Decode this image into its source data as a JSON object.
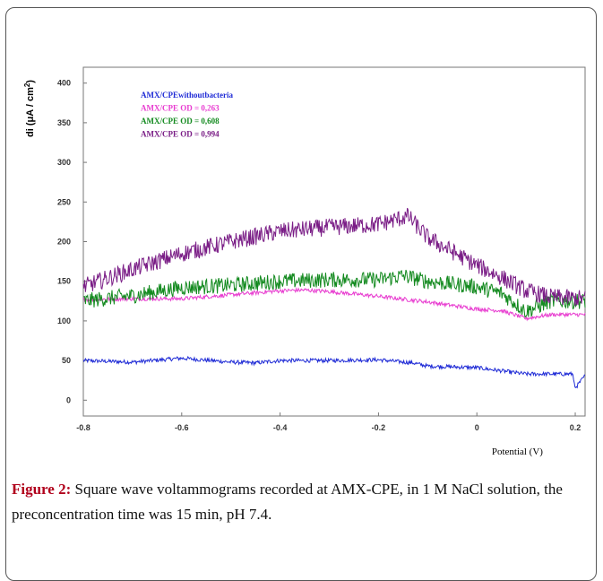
{
  "chart_data": {
    "type": "line",
    "title": "",
    "xlabel": "Potential (V)",
    "ylabel_parts": [
      "di (",
      "μ",
      "A / cm",
      "2",
      ")"
    ],
    "xlim": [
      -0.8,
      0.22
    ],
    "ylim": [
      -20,
      420
    ],
    "xticks": [
      -0.8,
      -0.6,
      -0.4,
      -0.2,
      0,
      0.2
    ],
    "xtick_labels": [
      "-0.8",
      "-0.6",
      "-0.4",
      "-0.2",
      "0",
      "0.2"
    ],
    "yticks": [
      0,
      50,
      100,
      150,
      200,
      250,
      300,
      350,
      400
    ],
    "ytick_labels": [
      "0",
      "50",
      "100",
      "150",
      "200",
      "250",
      "300",
      "350",
      "400"
    ],
    "legend_position": "top-left",
    "series": [
      {
        "name": "AMX/CPE without bacteria",
        "legend_label": "AMX/CPEwithoutbacteria",
        "color": "#1f2bd6",
        "noise": 2.5,
        "x": [
          -0.8,
          -0.7,
          -0.6,
          -0.5,
          -0.45,
          -0.4,
          -0.3,
          -0.2,
          -0.13,
          -0.1,
          0,
          0.1,
          0.15,
          0.195,
          0.2,
          0.22
        ],
        "y": [
          50,
          48,
          53,
          48,
          47,
          50,
          50,
          51,
          47,
          43,
          41,
          33,
          33,
          33,
          15,
          31
        ]
      },
      {
        "name": "AMX/CPE OD = 0,263",
        "legend_label": "AMX/CPE OD = 0,263",
        "color": "#e83cd0",
        "noise": 2.5,
        "x": [
          -0.8,
          -0.7,
          -0.6,
          -0.5,
          -0.4,
          -0.35,
          -0.3,
          -0.2,
          -0.1,
          0,
          0.05,
          0.1,
          0.15,
          0.22
        ],
        "y": [
          127,
          128,
          128,
          133,
          138,
          139,
          137,
          131,
          124,
          115,
          113,
          103,
          108,
          108
        ]
      },
      {
        "name": "AMX/CPE OD = 0,608",
        "legend_label": "AMX/CPE OD = 0,608",
        "color": "#138a1f",
        "noise": 10,
        "x": [
          -0.8,
          -0.7,
          -0.6,
          -0.5,
          -0.4,
          -0.3,
          -0.2,
          -0.15,
          -0.1,
          0,
          0.05,
          0.1,
          0.15,
          0.22
        ],
        "y": [
          125,
          132,
          142,
          145,
          150,
          152,
          152,
          157,
          150,
          143,
          135,
          112,
          125,
          125
        ]
      },
      {
        "name": "AMX/CPE OD = 0,994",
        "legend_label": "AMX/CPE OD = 0,994",
        "color": "#7a1d86",
        "noise": 11,
        "x": [
          -0.8,
          -0.7,
          -0.6,
          -0.5,
          -0.4,
          -0.3,
          -0.2,
          -0.14,
          -0.1,
          0,
          0.05,
          0.1,
          0.15,
          0.22
        ],
        "y": [
          143,
          165,
          185,
          200,
          213,
          218,
          222,
          232,
          205,
          170,
          155,
          138,
          130,
          128
        ]
      }
    ]
  },
  "caption": {
    "label": "Figure 2:",
    "text": " Square wave voltammograms recorded at AMX-CPE, in 1 M NaCl solution, the preconcentration time was 15 min, pH 7.4."
  }
}
